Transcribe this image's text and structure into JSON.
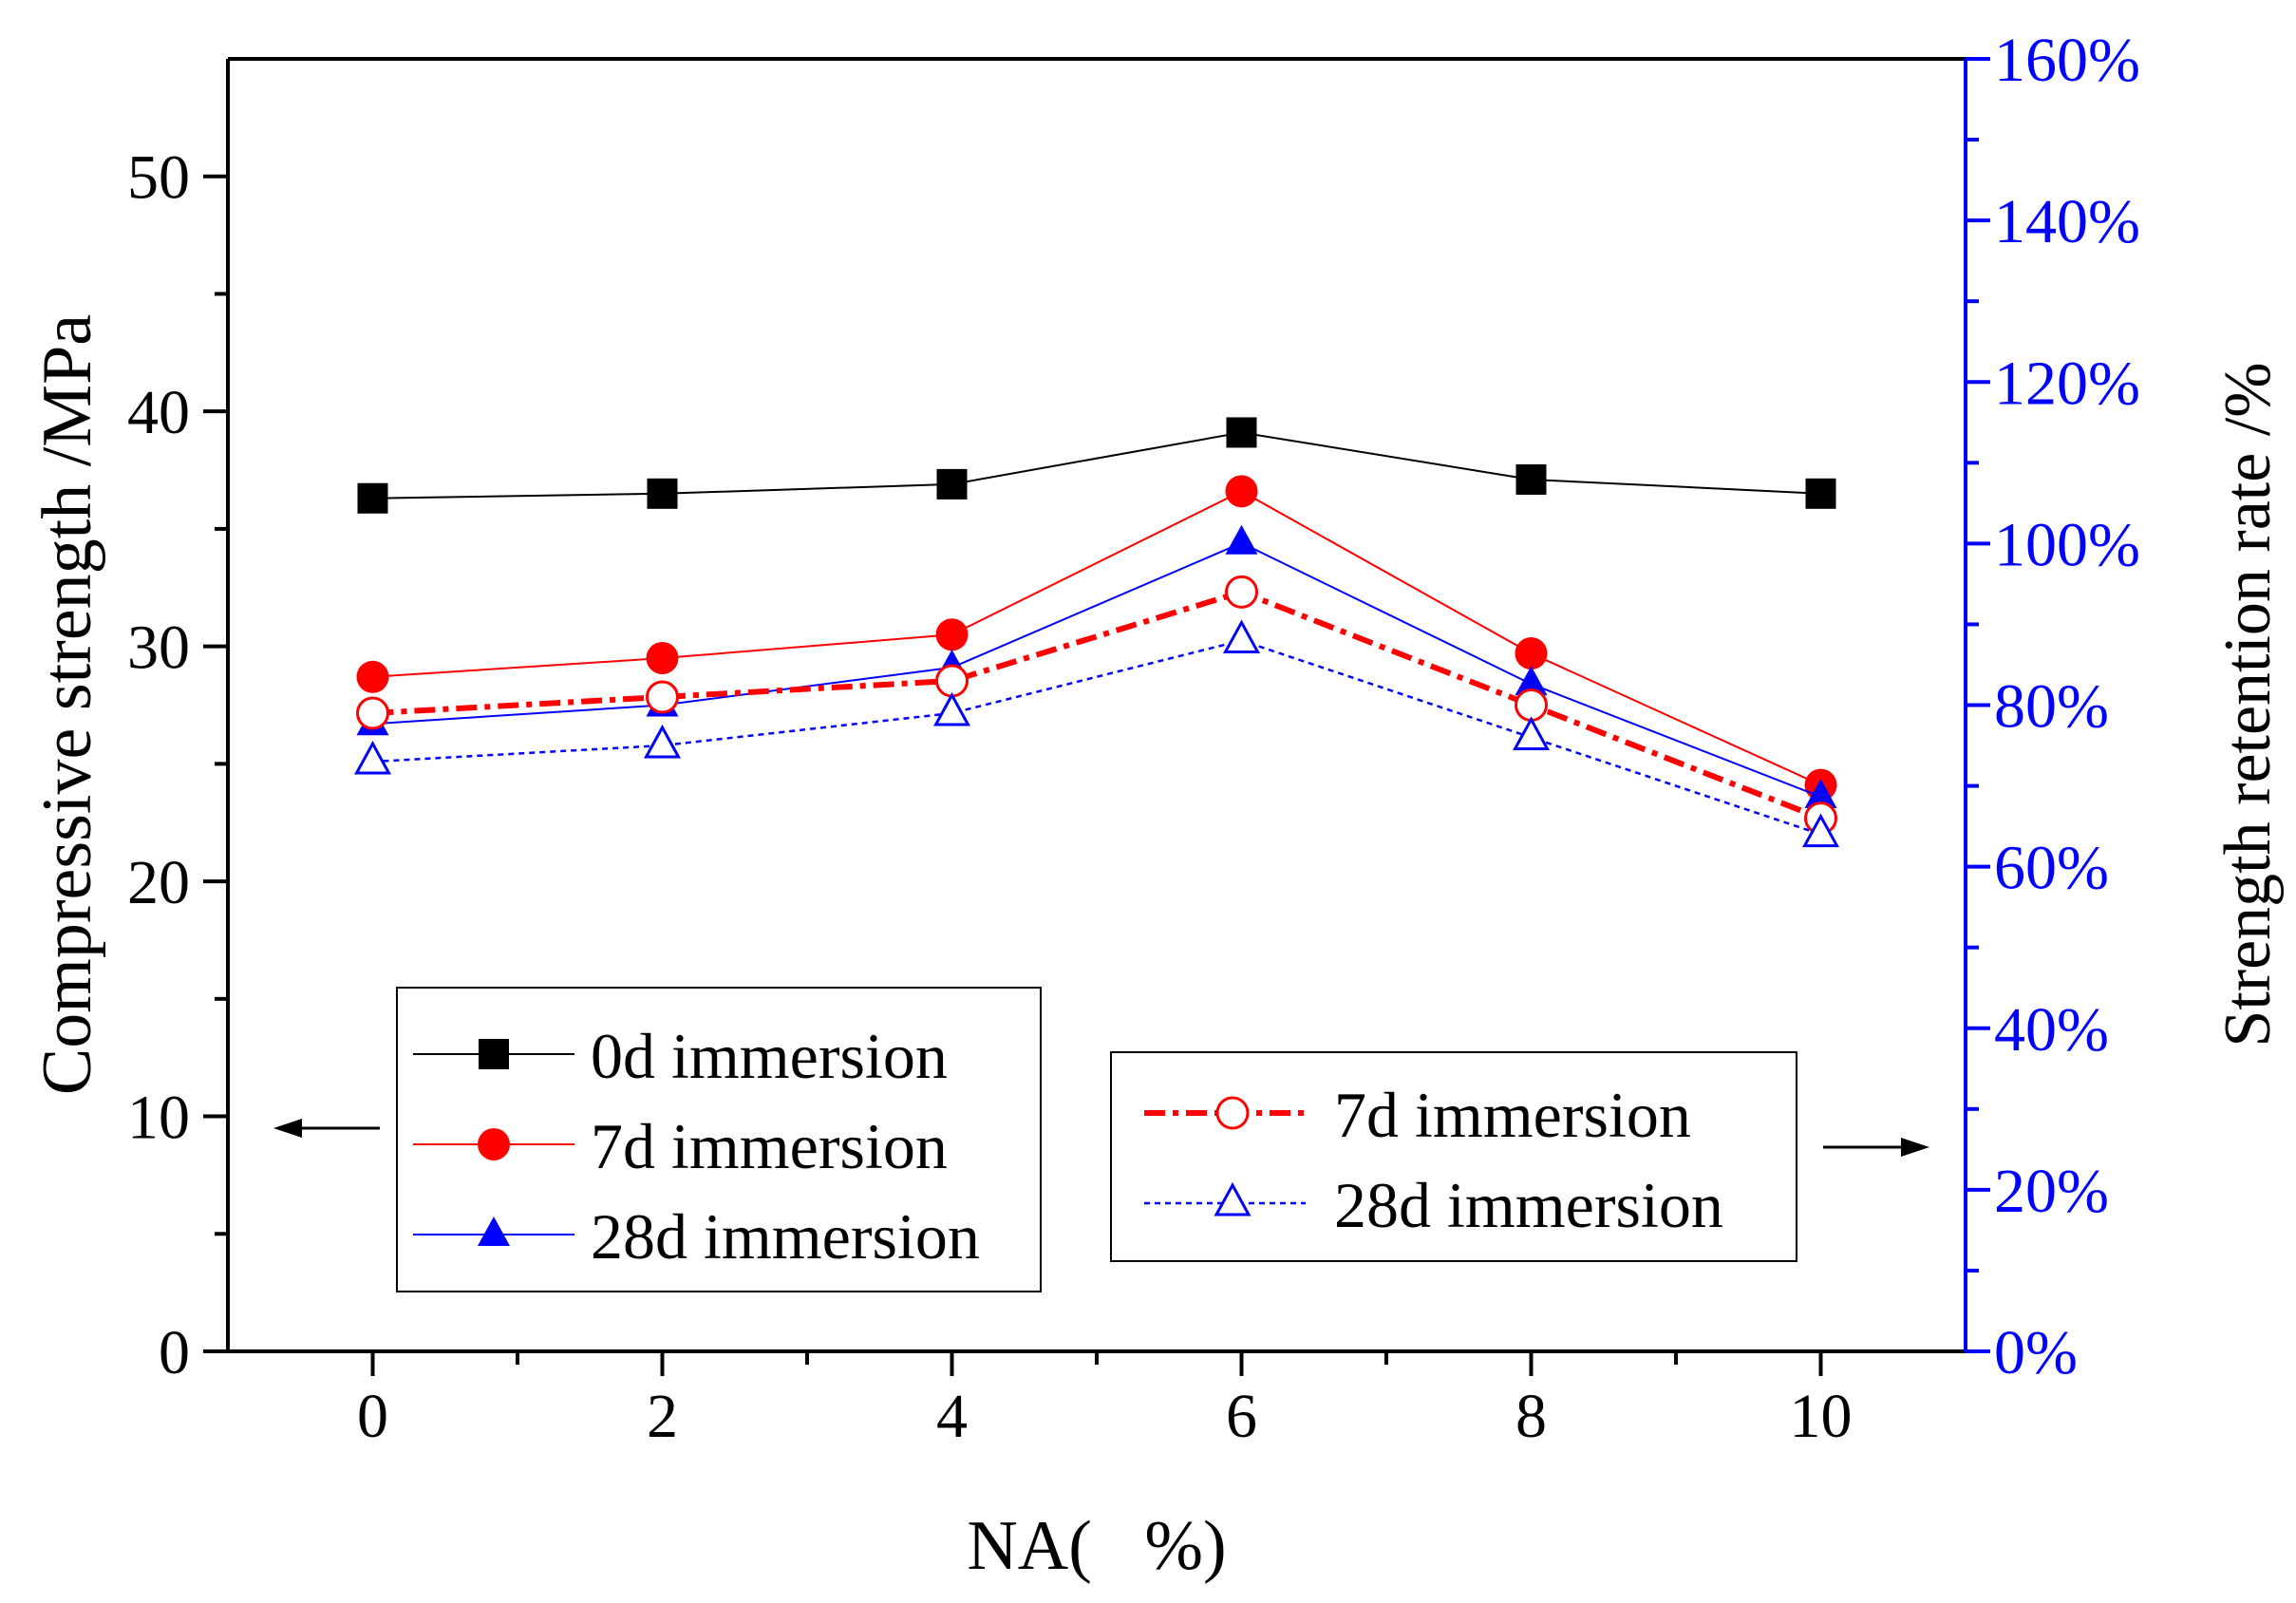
{
  "chart_data": {
    "type": "line",
    "x": [
      0,
      2,
      4,
      6,
      8,
      10
    ],
    "xlabel": "NA(   %)",
    "xlim": [
      -1,
      11
    ],
    "x_ticks": [
      0,
      2,
      4,
      6,
      8,
      10
    ],
    "x_tick_labels": [
      "0",
      "2",
      "4",
      "6",
      "8",
      "10"
    ],
    "ylabel_left": "Compressive strength /MPa",
    "ylim_left": [
      0,
      55
    ],
    "y_ticks_left": [
      0,
      10,
      20,
      30,
      40,
      50
    ],
    "y_tick_labels_left": [
      "0",
      "10",
      "20",
      "30",
      "40",
      "50"
    ],
    "ylabel_right": "Strength retention rate /%",
    "ylim_right": [
      0,
      160
    ],
    "y_ticks_right": [
      0,
      20,
      40,
      60,
      80,
      100,
      120,
      140,
      160
    ],
    "y_tick_labels_right": [
      "0%",
      "20%",
      "40%",
      "60%",
      "80%",
      "100%",
      "120%",
      "140%",
      "160%"
    ],
    "grid": false,
    "series": [
      {
        "name": "0d immersion",
        "axis": "left",
        "marker": "square-filled",
        "color": "#000000",
        "line": "solid",
        "values": [
          36.3,
          36.5,
          36.9,
          39.1,
          37.1,
          36.5
        ]
      },
      {
        "name": "7d immersion",
        "axis": "left",
        "marker": "circle-filled",
        "color": "#ff0000",
        "line": "solid",
        "values": [
          28.7,
          29.5,
          30.5,
          36.6,
          29.7,
          24.1
        ]
      },
      {
        "name": "28d immersion",
        "axis": "left",
        "marker": "triangle-filled",
        "color": "#0000ff",
        "line": "solid",
        "values": [
          26.7,
          27.5,
          29.1,
          34.4,
          28.4,
          23.6
        ]
      },
      {
        "name": "7d immersion",
        "axis": "right",
        "marker": "circle-open",
        "color": "#ff0000",
        "line": "dash-dot",
        "values": [
          79,
          81,
          83,
          94,
          80,
          66
        ]
      },
      {
        "name": "28d immersion",
        "axis": "right",
        "marker": "triangle-open",
        "color": "#0000ff",
        "line": "dot",
        "values": [
          73,
          75,
          79,
          88,
          76,
          64
        ]
      }
    ],
    "legend_left": {
      "placement": "bottom-left",
      "entries": [
        "0d immersion",
        "7d immersion",
        "28d immersion"
      ],
      "arrow": "←"
    },
    "legend_right": {
      "placement": "bottom-right",
      "entries": [
        "7d immersion",
        "28d immersion"
      ],
      "arrow": "→"
    },
    "colors": {
      "left_axis": "#000000",
      "right_axis": "#0000ff",
      "red": "#ff0000",
      "blue": "#0000ff",
      "black": "#000000"
    }
  }
}
